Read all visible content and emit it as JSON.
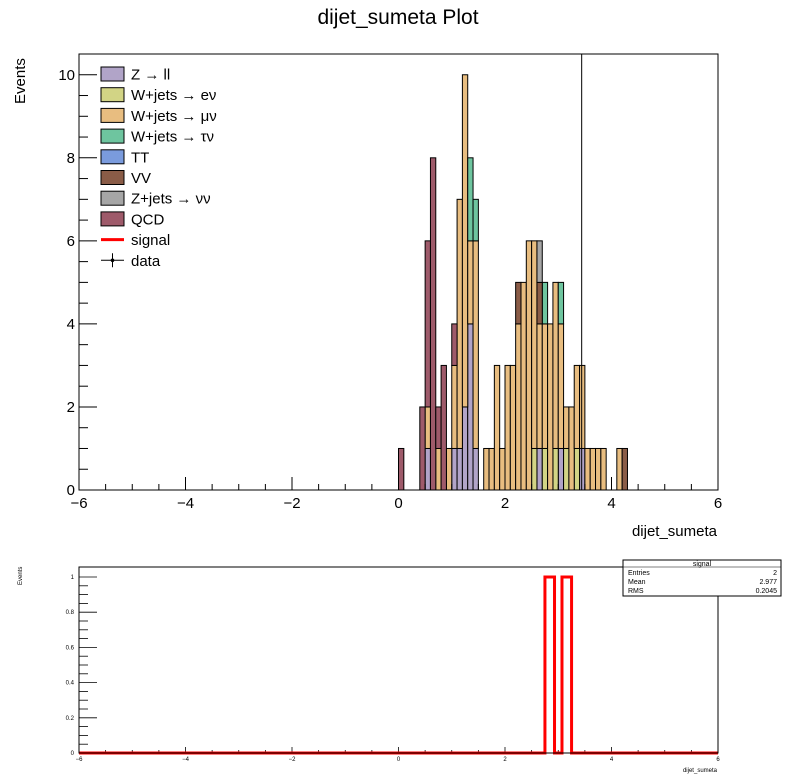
{
  "colors": {
    "z_ll": "#b1a4c8",
    "w_enu": "#d2d485",
    "w_munu": "#e8bd80",
    "w_taunu": "#6ec59f",
    "tt": "#7a9bdd",
    "vv": "#8a5c47",
    "z_nunu": "#a6a6a6",
    "qcd": "#9e5a6a",
    "signal": "#ff0000",
    "data": "#000000"
  },
  "chart_data": [
    {
      "type": "bar",
      "title": "dijet_sumeta Plot",
      "xlabel": "dijet_sumeta",
      "ylabel": "Events",
      "xlim": [
        -6,
        6
      ],
      "ylim": [
        0,
        10.5
      ],
      "x_ticks": [
        "−6",
        "−4",
        "−2",
        "0",
        "2",
        "4",
        "6"
      ],
      "y_ticks": [
        "0",
        "2",
        "4",
        "6",
        "8",
        "10"
      ],
      "bin_width": 0.1,
      "bin_starts": [
        0.0,
        0.3,
        0.4,
        0.5,
        0.6,
        0.7,
        0.8,
        0.9,
        1.0,
        1.1,
        1.2,
        1.3,
        1.4,
        1.5,
        1.6,
        1.7,
        1.8,
        1.9,
        2.0,
        2.1,
        2.2,
        2.3,
        2.4,
        2.5,
        2.6,
        2.7,
        2.8,
        2.9,
        3.0,
        3.1,
        3.2,
        3.3,
        3.4,
        3.5,
        3.6,
        3.7,
        3.8,
        3.9,
        4.1,
        4.2
      ],
      "legend_position": "top-left",
      "series": [
        {
          "name": "Z → ll",
          "color_key": "z_ll",
          "values": [
            0,
            0,
            0,
            1,
            0,
            0,
            0,
            0,
            1,
            1,
            2,
            4,
            1,
            0,
            0,
            0,
            0,
            0,
            0,
            0,
            0,
            0,
            0,
            0,
            1,
            0,
            0,
            0,
            1,
            0,
            0,
            0,
            1,
            0,
            0,
            0,
            0,
            0,
            0,
            0
          ]
        },
        {
          "name": "W+jets → eν",
          "color_key": "w_enu",
          "values": [
            0,
            0,
            0,
            0,
            0,
            0,
            0,
            0,
            0,
            0,
            0,
            0,
            0,
            0,
            0,
            0,
            0,
            0,
            0,
            0,
            0,
            0,
            0,
            1,
            0,
            1,
            0,
            1,
            0,
            1,
            0,
            1,
            0,
            0,
            0,
            0,
            0,
            0,
            0,
            0
          ]
        },
        {
          "name": "W+jets → μν",
          "color_key": "w_munu",
          "values": [
            0,
            0,
            0,
            1,
            0,
            1,
            0,
            1,
            2,
            6,
            8,
            2,
            5,
            0,
            1,
            1,
            3,
            1,
            3,
            3,
            4,
            5,
            6,
            5,
            3,
            3,
            4,
            4,
            3,
            1,
            2,
            2,
            2,
            1,
            1,
            1,
            1,
            0,
            1,
            0
          ]
        },
        {
          "name": "W+jets → τν",
          "color_key": "w_taunu",
          "values": [
            0,
            0,
            0,
            0,
            0,
            0,
            0,
            0,
            0,
            0,
            0,
            2,
            1,
            0,
            0,
            0,
            0,
            0,
            0,
            0,
            0,
            0,
            0,
            0,
            0,
            1,
            0,
            0,
            1,
            0,
            0,
            0,
            0,
            0,
            0,
            0,
            0,
            0,
            0,
            0
          ]
        },
        {
          "name": "TT",
          "color_key": "tt",
          "values": [
            0,
            0,
            0,
            0,
            0,
            0,
            0,
            0,
            0,
            0,
            0,
            0,
            0,
            0,
            0,
            0,
            0,
            0,
            0,
            0,
            0,
            0,
            0,
            0,
            0,
            0,
            0,
            0,
            0,
            0,
            0,
            0,
            0,
            0,
            0,
            0,
            0,
            0,
            0,
            0
          ]
        },
        {
          "name": "VV",
          "color_key": "vv",
          "values": [
            0,
            0,
            0,
            0,
            0,
            0,
            0,
            0,
            0,
            0,
            0,
            0,
            0,
            0,
            0,
            0,
            0,
            0,
            0,
            0,
            1,
            0,
            0,
            0,
            1,
            0,
            0,
            0,
            0,
            0,
            0,
            0,
            0,
            0,
            0,
            0,
            0,
            0,
            0,
            1
          ]
        },
        {
          "name": "Z+jets → νν",
          "color_key": "z_nunu",
          "values": [
            0,
            0,
            0,
            0,
            0,
            0,
            0,
            0,
            0,
            0,
            0,
            0,
            0,
            0,
            0,
            0,
            0,
            0,
            0,
            0,
            0,
            0,
            0,
            0,
            1,
            0,
            0,
            0,
            0,
            0,
            0,
            0,
            0,
            0,
            0,
            0,
            0,
            0,
            0,
            0
          ]
        },
        {
          "name": "QCD",
          "color_key": "qcd",
          "values": [
            1,
            0,
            2,
            4,
            8,
            1,
            3,
            0,
            1,
            0,
            0,
            0,
            0,
            0,
            0,
            0,
            0,
            0,
            0,
            0,
            0,
            0,
            0,
            0,
            0,
            0,
            0,
            0,
            0,
            0,
            0,
            0,
            0,
            0,
            0,
            0,
            0,
            0,
            0,
            0
          ]
        }
      ],
      "extra_legend": [
        {
          "name": "signal",
          "color_key": "signal"
        },
        {
          "name": "data",
          "color_key": "data"
        }
      ],
      "data_marker_x": 3.44
    },
    {
      "type": "line",
      "xlabel": "dijet_sumeta",
      "ylabel": "Events",
      "xlim": [
        -6,
        6
      ],
      "ylim": [
        0,
        1.0
      ],
      "x_ticks": [
        "−6",
        "−4",
        "−2",
        "0",
        "2",
        "4",
        "6"
      ],
      "y_ticks": [
        "0",
        "0.2",
        "0.4",
        "0.6",
        "0.8",
        "1"
      ],
      "series": [
        {
          "name": "signal",
          "color_key": "signal",
          "bins": [
            [
              2.75,
              2.93,
              1
            ],
            [
              3.07,
              3.25,
              1
            ]
          ]
        }
      ],
      "stats_box": {
        "title": "signal",
        "rows": [
          {
            "label": "Entries",
            "value": "2"
          },
          {
            "label": "Mean",
            "value": "2.977"
          },
          {
            "label": "RMS",
            "value": "0.2045"
          }
        ]
      }
    }
  ]
}
